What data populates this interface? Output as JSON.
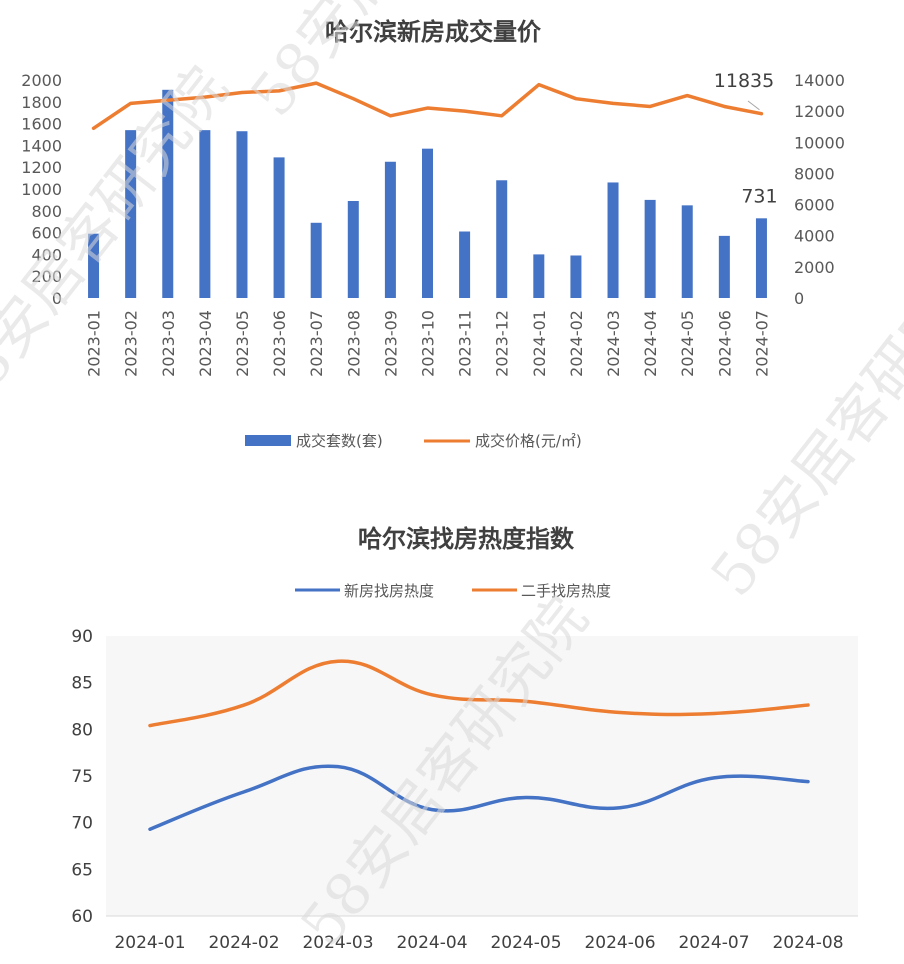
{
  "chart_data": [
    {
      "type": "bar",
      "title": "哈尔滨新房成交量价",
      "categories": [
        "2023-01",
        "2023-02",
        "2023-03",
        "2023-04",
        "2023-05",
        "2023-06",
        "2023-07",
        "2023-08",
        "2023-09",
        "2023-10",
        "2023-11",
        "2023-12",
        "2024-01",
        "2024-02",
        "2024-03",
        "2024-04",
        "2024-05",
        "2024-06",
        "2024-07"
      ],
      "series": [
        {
          "name": "成交套数(套)",
          "chart": "bar",
          "axis": "left",
          "color": "#4472C4",
          "values": [
            590,
            1540,
            1910,
            1540,
            1530,
            1290,
            690,
            890,
            1250,
            1370,
            610,
            1080,
            400,
            390,
            1060,
            900,
            850,
            570,
            731
          ]
        },
        {
          "name": "成交价格(元/㎡)",
          "chart": "line",
          "axis": "right",
          "color": "#ED7D31",
          "values": [
            10900,
            12500,
            12700,
            12900,
            13200,
            13300,
            13800,
            12800,
            11700,
            12200,
            12000,
            11700,
            13700,
            12800,
            12500,
            12300,
            13000,
            12300,
            11835
          ]
        }
      ],
      "ylim_left": [
        0,
        2000
      ],
      "ylim_right": [
        0,
        14000
      ],
      "yticks_left": [
        0,
        200,
        400,
        600,
        800,
        1000,
        1200,
        1400,
        1600,
        1800,
        2000
      ],
      "yticks_right": [
        0,
        2000,
        4000,
        6000,
        8000,
        10000,
        12000,
        14000
      ],
      "data_labels": [
        {
          "series": "成交价格(元/㎡)",
          "category": "2024-07",
          "text": "11835"
        },
        {
          "series": "成交套数(套)",
          "category": "2024-07",
          "text": "731"
        }
      ],
      "legend_position": "bottom",
      "grid": false
    },
    {
      "type": "line",
      "title": "哈尔滨找房热度指数",
      "categories": [
        "2024-01",
        "2024-02",
        "2024-03",
        "2024-04",
        "2024-05",
        "2024-06",
        "2024-07",
        "2024-08"
      ],
      "series": [
        {
          "name": "新房找房热度",
          "color": "#4472C4",
          "values": [
            69.3,
            73.3,
            76,
            71.4,
            72.7,
            71.6,
            74.8,
            74.4
          ]
        },
        {
          "name": "二手找房热度",
          "color": "#ED7D31",
          "values": [
            80.4,
            82.6,
            87.3,
            83.7,
            83,
            81.8,
            81.7,
            82.6
          ]
        }
      ],
      "ylim": [
        60,
        90
      ],
      "yticks": [
        60,
        65,
        70,
        75,
        80,
        85,
        90
      ],
      "legend_position": "top",
      "grid": false,
      "smooth": true
    }
  ],
  "watermark": {
    "text": "58安居客研究院"
  }
}
